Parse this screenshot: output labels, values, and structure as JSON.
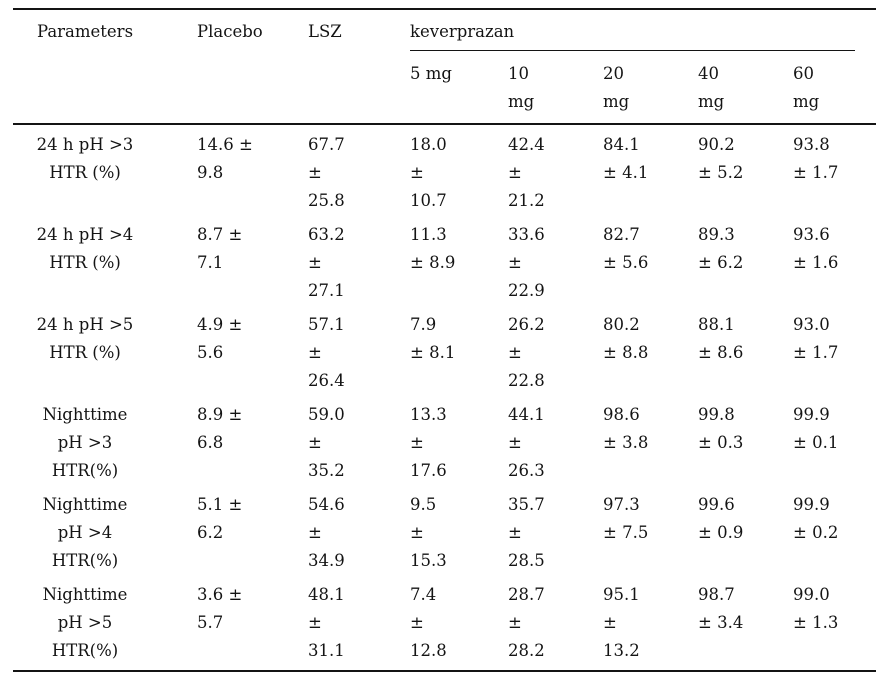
{
  "table": {
    "header": {
      "parameters": "Parameters",
      "placebo": "Placebo",
      "lsz": "LSZ",
      "group": "keverprazan",
      "doses": [
        [
          "5 mg"
        ],
        [
          "10",
          "mg"
        ],
        [
          "20",
          "mg"
        ],
        [
          "40",
          "mg"
        ],
        [
          "60",
          "mg"
        ]
      ]
    },
    "rows": [
      {
        "parameter": [
          "24 h pH >3",
          "HTR (%)"
        ],
        "values": [
          [
            "14.6 ±",
            "9.8"
          ],
          [
            "67.7",
            "±",
            "25.8"
          ],
          [
            "18.0",
            "±",
            "10.7"
          ],
          [
            "42.4",
            "±",
            "21.2"
          ],
          [
            "84.1",
            "± 4.1"
          ],
          [
            "90.2",
            "± 5.2"
          ],
          [
            "93.8",
            "± 1.7"
          ]
        ]
      },
      {
        "parameter": [
          "24 h pH >4",
          "HTR (%)"
        ],
        "values": [
          [
            "8.7 ±",
            "7.1"
          ],
          [
            "63.2",
            "±",
            "27.1"
          ],
          [
            "11.3",
            "± 8.9"
          ],
          [
            "33.6",
            "±",
            "22.9"
          ],
          [
            "82.7",
            "± 5.6"
          ],
          [
            "89.3",
            "± 6.2"
          ],
          [
            "93.6",
            "± 1.6"
          ]
        ]
      },
      {
        "parameter": [
          "24 h pH >5",
          "HTR (%)"
        ],
        "values": [
          [
            "4.9 ±",
            "5.6"
          ],
          [
            "57.1",
            "±",
            "26.4"
          ],
          [
            "7.9",
            "± 8.1"
          ],
          [
            "26.2",
            "±",
            "22.8"
          ],
          [
            "80.2",
            "± 8.8"
          ],
          [
            "88.1",
            "± 8.6"
          ],
          [
            "93.0",
            "± 1.7"
          ]
        ]
      },
      {
        "parameter": [
          "Nighttime",
          "pH >3",
          "HTR(%)"
        ],
        "values": [
          [
            "8.9 ±",
            "6.8"
          ],
          [
            "59.0",
            "±",
            "35.2"
          ],
          [
            "13.3",
            "±",
            "17.6"
          ],
          [
            "44.1",
            "±",
            "26.3"
          ],
          [
            "98.6",
            "± 3.8"
          ],
          [
            "99.8",
            "± 0.3"
          ],
          [
            "99.9",
            "± 0.1"
          ]
        ]
      },
      {
        "parameter": [
          "Nighttime",
          "pH >4",
          "HTR(%)"
        ],
        "values": [
          [
            "5.1 ±",
            "6.2"
          ],
          [
            "54.6",
            "±",
            "34.9"
          ],
          [
            "9.5",
            "±",
            "15.3"
          ],
          [
            "35.7",
            "±",
            "28.5"
          ],
          [
            "97.3",
            "± 7.5"
          ],
          [
            "99.6",
            "± 0.9"
          ],
          [
            "99.9",
            "± 0.2"
          ]
        ]
      },
      {
        "parameter": [
          "Nighttime",
          "pH >5",
          "HTR(%)"
        ],
        "values": [
          [
            "3.6 ±",
            "5.7"
          ],
          [
            "48.1",
            "±",
            "31.1"
          ],
          [
            "7.4",
            "±",
            "12.8"
          ],
          [
            "28.7",
            "±",
            "28.2"
          ],
          [
            "95.1",
            "±",
            "13.2"
          ],
          [
            "98.7",
            "± 3.4"
          ],
          [
            "99.0",
            "± 1.3"
          ]
        ]
      }
    ]
  },
  "colors": {
    "text": "#141414",
    "background": "#ffffff",
    "rule": "#141414"
  }
}
